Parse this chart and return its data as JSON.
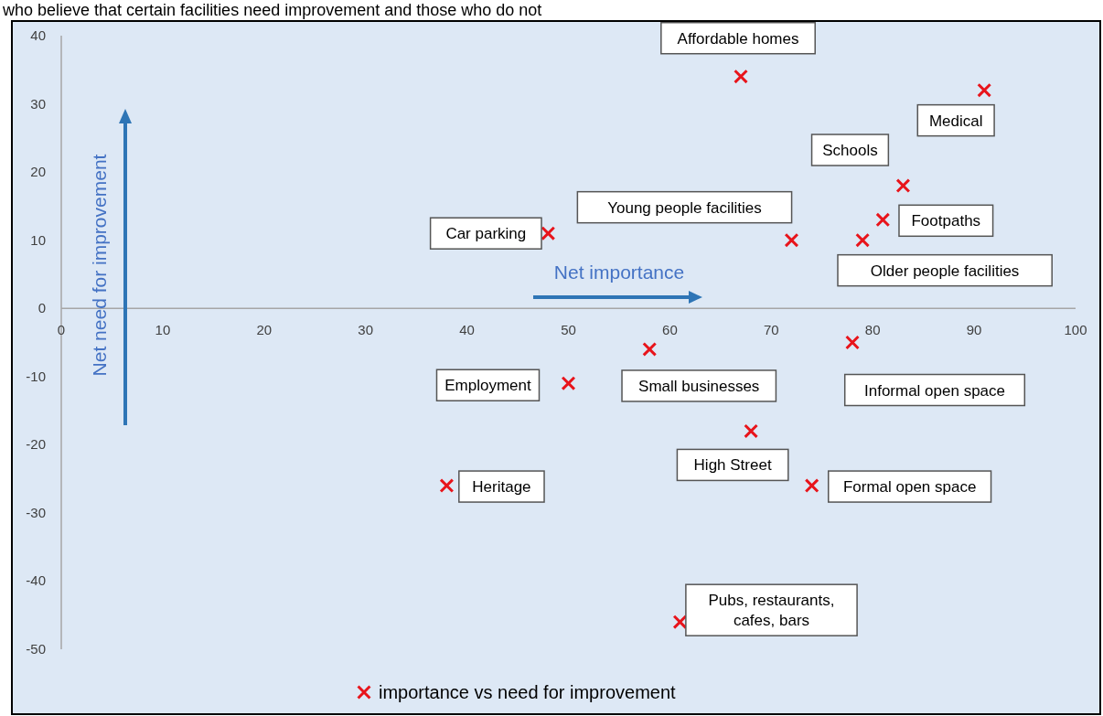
{
  "chart_data": {
    "type": "scatter",
    "title": "who believe that certain facilities need improvement and those who do not",
    "xlabel": "Net importance",
    "ylabel": "Net need for improvement",
    "xlim": [
      0,
      100
    ],
    "xticks": [
      0,
      10,
      20,
      30,
      40,
      50,
      60,
      70,
      80,
      90,
      100
    ],
    "ylim": [
      -50,
      40
    ],
    "yticks": [
      -50,
      -40,
      -30,
      -20,
      -10,
      0,
      10,
      20,
      30,
      40
    ],
    "grid": false,
    "legend": "bottom",
    "marker": "cross",
    "series": [
      {
        "name": "importance vs need for improvement",
        "color": "#e8141b",
        "x": [
          67,
          91,
          83,
          81,
          79,
          72,
          48,
          58,
          78,
          50,
          68,
          38,
          74,
          61
        ],
        "values": [
          34,
          32,
          18,
          13,
          10,
          10,
          11,
          -6,
          -5,
          -11,
          -18,
          -26,
          -26,
          -46
        ]
      }
    ],
    "annotations": [
      {
        "text": "Affordable homes",
        "x": 67,
        "y": 34
      },
      {
        "text": "Medical",
        "x": 91,
        "y": 32
      },
      {
        "text": "Schools",
        "x": 83,
        "y": 18
      },
      {
        "text": "Footpaths",
        "x": 81,
        "y": 13
      },
      {
        "text": "Older people facilities",
        "x": 79,
        "y": 10
      },
      {
        "text": "Young people facilities",
        "x": 72,
        "y": 10
      },
      {
        "text": "Car parking",
        "x": 48,
        "y": 11
      },
      {
        "text": "Small businesses",
        "x": 58,
        "y": -6
      },
      {
        "text": "Informal open space",
        "x": 78,
        "y": -5
      },
      {
        "text": "Employment",
        "x": 50,
        "y": -11
      },
      {
        "text": "High Street",
        "x": 68,
        "y": -18
      },
      {
        "text": "Heritage",
        "x": 38,
        "y": -26
      },
      {
        "text": "Formal open space",
        "x": 74,
        "y": -26
      },
      {
        "text": "Pubs, restaurants, cafes, bars",
        "x": 61,
        "y": -46
      }
    ]
  }
}
